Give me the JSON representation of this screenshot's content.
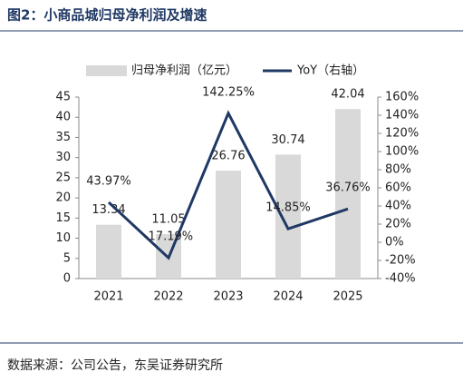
{
  "chart_data": {
    "type": "bar-line",
    "title": "图2：小商品城归母净利润及增速",
    "source": "数据来源：公司公告，东吴证券研究所",
    "categories": [
      "2021",
      "2022",
      "2023",
      "2024",
      "2025"
    ],
    "series": [
      {
        "name": "归母净利润（亿元）",
        "type": "bar",
        "color": "#d9d9d9",
        "values": [
          13.34,
          11.05,
          26.76,
          30.74,
          42.04
        ]
      },
      {
        "name": "YoY（右轴）",
        "type": "line",
        "axis": "y2",
        "color": "#1f3864",
        "values": [
          43.97,
          -17.19,
          142.25,
          14.85,
          36.76
        ],
        "value_labels": [
          "43.97%",
          "-17.19%",
          "142.25%",
          "14.85%",
          "36.76%"
        ]
      }
    ],
    "ylim": [
      0,
      45
    ],
    "yticks": [
      0,
      5,
      10,
      15,
      20,
      25,
      30,
      35,
      40,
      45
    ],
    "y2lim": [
      -40,
      160
    ],
    "y2ticks": [
      {
        "value": -40,
        "label": "-40%"
      },
      {
        "value": -20,
        "label": "-20%"
      },
      {
        "value": 0,
        "label": "0%"
      },
      {
        "value": 20,
        "label": "20%"
      },
      {
        "value": 40,
        "label": "40%"
      },
      {
        "value": 60,
        "label": "60%"
      },
      {
        "value": 80,
        "label": "80%"
      },
      {
        "value": 100,
        "label": "100%"
      },
      {
        "value": 120,
        "label": "120%"
      },
      {
        "value": 140,
        "label": "140%"
      },
      {
        "value": 160,
        "label": "160%"
      }
    ],
    "legend": "top"
  }
}
